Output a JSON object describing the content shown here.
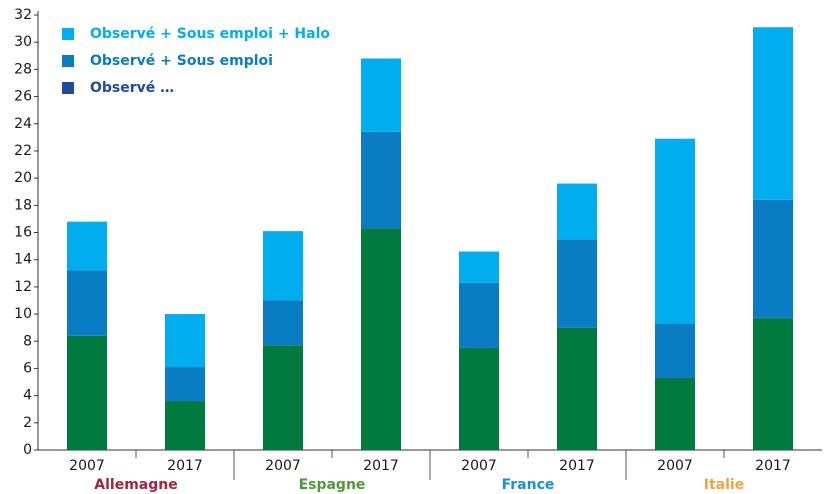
{
  "chart_data": {
    "type": "stacked_bar",
    "categories": [
      "2007",
      "2017",
      "2007",
      "2017",
      "2007",
      "2017",
      "2007",
      "2017"
    ],
    "groups": [
      {
        "name": "Allemagne",
        "color": "#a3243b"
      },
      {
        "name": "Espagne",
        "color": "#4b9a35"
      },
      {
        "name": "France",
        "color": "#1a8fd6"
      },
      {
        "name": "Italie",
        "color": "#f3a33a"
      }
    ],
    "series": [
      {
        "name": "Observé …",
        "color": "#007a3e",
        "legend_color": "#1d4c9e",
        "values": [
          8.4,
          3.6,
          7.7,
          16.3,
          7.5,
          9.0,
          5.3,
          9.7
        ]
      },
      {
        "name": "Observé + Sous emploi",
        "color": "#0a7cc4",
        "legend_color": "#0a7cc4",
        "values": [
          4.8,
          2.5,
          3.3,
          7.1,
          4.8,
          6.5,
          4.0,
          8.7
        ]
      },
      {
        "name": "Observé + Sous emploi + Halo",
        "color": "#00aeef",
        "legend_color": "#00aeef",
        "values": [
          3.6,
          3.9,
          5.1,
          5.4,
          2.3,
          4.1,
          13.6,
          12.7
        ]
      }
    ],
    "ylim": [
      0,
      32
    ],
    "yticks": [
      0,
      2,
      4,
      6,
      8,
      10,
      12,
      14,
      16,
      18,
      20,
      22,
      24,
      26,
      28,
      30,
      32
    ],
    "grid": false
  }
}
